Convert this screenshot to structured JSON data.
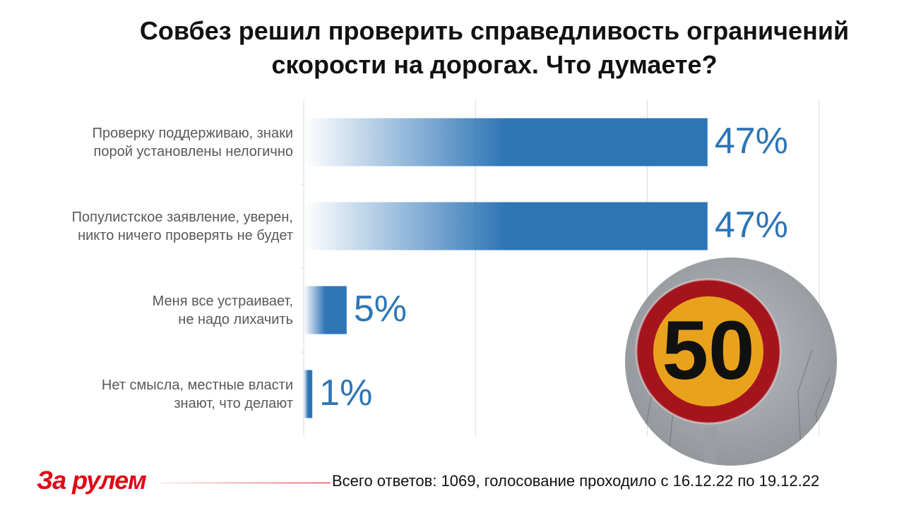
{
  "title": {
    "line1": "Совбез решил проверить справедливость ограничений",
    "line2": "скорости на дорогах. Что думаете?"
  },
  "chart_data": {
    "type": "bar",
    "orientation": "horizontal",
    "categories": [
      [
        "Проверку поддерживаю, знаки",
        "порой установлены нелогично"
      ],
      [
        "Популистское заявление, уверен,",
        "никто ничего проверять не будет"
      ],
      [
        "Меня все устраивает,",
        "не надо лихачить"
      ],
      [
        "Нет смысла, местные власти",
        "знают, что делают"
      ]
    ],
    "values": [
      47,
      47,
      5,
      1
    ],
    "value_labels": [
      "47%",
      "47%",
      "5%",
      "1%"
    ],
    "xlim": [
      0,
      60
    ],
    "grid": true,
    "bar_color": "#2e75b6"
  },
  "sign": {
    "number": "50"
  },
  "footer": {
    "logo": "За рулем",
    "text": "Всего ответов: 1069, голосование проходило с 16.12.22 по 19.12.22"
  },
  "colors": {
    "accent": "#2e75b6",
    "brand_red": "#e30613",
    "sign_red": "#a5141c",
    "sign_yellow": "#e9a21c"
  }
}
